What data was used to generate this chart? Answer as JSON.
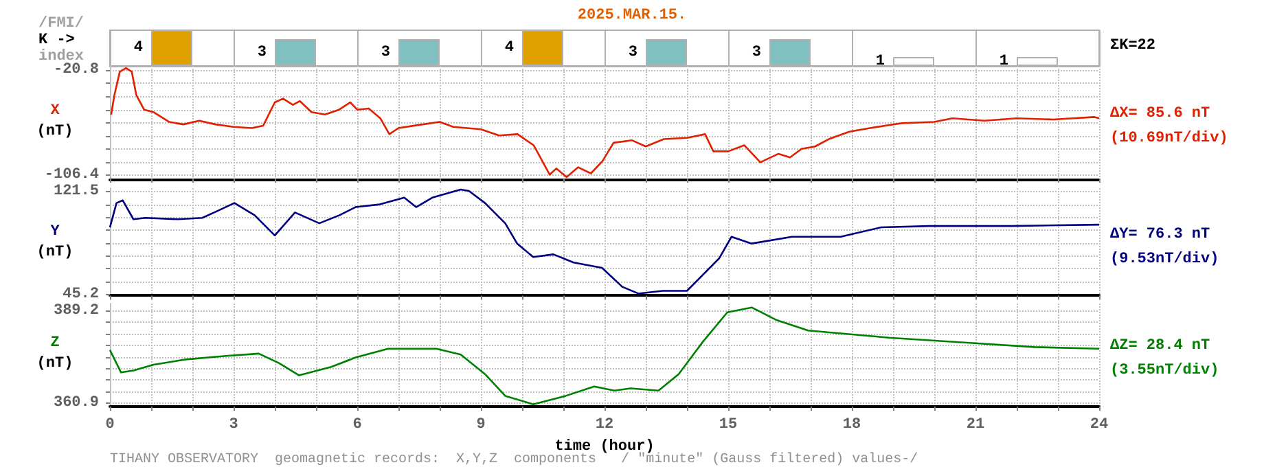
{
  "chart_data": [
    {
      "type": "bar",
      "title": "2025.MAR.15.",
      "categories": [
        null,
        null,
        null,
        null,
        null,
        null,
        null,
        null
      ],
      "values": [
        4,
        3,
        3,
        4,
        3,
        3,
        1,
        1
      ],
      "data_labels": true,
      "colors": [
        "#e0a000",
        "#80c0c0",
        "#80c0c0",
        "#e0a000",
        "#80c0c0",
        "#80c0c0",
        "#ffffff",
        "#ffffff"
      ],
      "annotations": [
        "/FMI/",
        "K ->",
        "index",
        "ΣK=22"
      ]
    },
    {
      "type": "line",
      "ylabel": "X (nT)",
      "xlim": [
        0,
        24
      ],
      "ylim": [
        -109.5,
        -17.3
      ],
      "xticks": [
        0,
        {
          "value": 1,
          "label": null
        },
        {
          "value": 2,
          "label": null
        },
        3,
        {
          "value": 4,
          "label": null
        },
        {
          "value": 5,
          "label": null
        },
        6,
        {
          "value": 7,
          "label": null
        },
        {
          "value": 8,
          "label": null
        },
        9,
        {
          "value": 10,
          "label": null
        },
        {
          "value": 11,
          "label": null
        },
        12,
        {
          "value": 13,
          "label": null
        },
        {
          "value": 14,
          "label": null
        },
        15,
        {
          "value": 16,
          "label": null
        },
        {
          "value": 17,
          "label": null
        },
        18,
        {
          "value": 19,
          "label": null
        },
        {
          "value": 20,
          "label": null
        },
        21,
        {
          "value": 22,
          "label": null
        },
        {
          "value": 23,
          "label": null
        },
        24
      ],
      "yticks": [
        -106.4,
        {
          "value": -95.7,
          "label": null
        },
        {
          "value": -85.0,
          "label": null
        },
        {
          "value": -74.3,
          "label": null
        },
        {
          "value": -63.6,
          "label": null
        },
        {
          "value": -52.9,
          "label": null
        },
        {
          "value": -42.2,
          "label": null
        },
        {
          "value": -31.5,
          "label": null
        },
        -20.8
      ],
      "grid": true,
      "tick_labels": "y",
      "x": [
        0.03,
        0.11,
        0.24,
        0.39,
        0.53,
        0.64,
        0.83,
        1.06,
        1.44,
        1.78,
        2.17,
        2.56,
        3.0,
        3.44,
        3.72,
        4.0,
        4.2,
        4.44,
        4.61,
        4.89,
        5.22,
        5.56,
        5.83,
        6.0,
        6.28,
        6.56,
        6.78,
        7.0,
        7.39,
        8.0,
        8.33,
        9.0,
        9.44,
        9.89,
        10.28,
        10.67,
        10.83,
        11.08,
        11.36,
        11.67,
        11.95,
        12.22,
        12.67,
        13.0,
        13.44,
        14.0,
        14.44,
        14.64,
        15.0,
        15.39,
        15.78,
        16.22,
        16.5,
        16.78,
        17.11,
        17.44,
        17.94,
        18.44,
        19.22,
        20.0,
        20.44,
        21.22,
        22.0,
        22.89,
        23.89,
        24.0
      ],
      "series": [
        {
          "color": "#e02000",
          "values": [
            -57,
            -41,
            -22,
            -19,
            -22,
            -41,
            -53,
            -55,
            -63,
            -65,
            -62,
            -65,
            -67,
            -68,
            -66,
            -47,
            -44,
            -49,
            -46,
            -55,
            -57,
            -53,
            -47,
            -53,
            -52,
            -60,
            -73,
            -68,
            -66,
            -63,
            -67,
            -69,
            -74,
            -73,
            -82,
            -106,
            -101,
            -108,
            -100,
            -105,
            -95,
            -80,
            -78,
            -83,
            -77,
            -76,
            -73,
            -87,
            -87,
            -82,
            -96,
            -89,
            -92,
            -85,
            -83,
            -77,
            -71,
            -68,
            -64,
            -63,
            -60,
            -62,
            -60,
            -61,
            -59,
            -60
          ]
        }
      ],
      "annotations": [
        "ΔX= 85.6 nT",
        "(10.69nT/div)"
      ]
    },
    {
      "type": "line",
      "ylabel": "Y (nT)",
      "xlim": [
        0,
        24
      ],
      "ylim": [
        44.5,
        124
      ],
      "xticks": [
        0,
        {
          "value": 1,
          "label": null
        },
        {
          "value": 2,
          "label": null
        },
        3,
        {
          "value": 4,
          "label": null
        },
        {
          "value": 5,
          "label": null
        },
        6,
        {
          "value": 7,
          "label": null
        },
        {
          "value": 8,
          "label": null
        },
        9,
        {
          "value": 10,
          "label": null
        },
        {
          "value": 11,
          "label": null
        },
        12,
        {
          "value": 13,
          "label": null
        },
        {
          "value": 14,
          "label": null
        },
        15,
        {
          "value": 16,
          "label": null
        },
        {
          "value": 17,
          "label": null
        },
        18,
        {
          "value": 19,
          "label": null
        },
        {
          "value": 20,
          "label": null
        },
        21,
        {
          "value": 22,
          "label": null
        },
        {
          "value": 23,
          "label": null
        },
        24
      ],
      "yticks": [
        45.2,
        {
          "value": 54.7,
          "label": null
        },
        {
          "value": 64.3,
          "label": null
        },
        {
          "value": 73.8,
          "label": null
        },
        {
          "value": 83.4,
          "label": null
        },
        {
          "value": 92.9,
          "label": null
        },
        {
          "value": 102.4,
          "label": null
        },
        {
          "value": 112.0,
          "label": null
        },
        121.5
      ],
      "grid": true,
      "tick_labels": "y",
      "x": [
        0,
        0.16,
        0.31,
        0.57,
        0.86,
        1.65,
        2.24,
        2.53,
        3.02,
        3.51,
        4.0,
        4.49,
        5.08,
        5.57,
        5.96,
        6.55,
        7.14,
        7.43,
        7.82,
        8.51,
        8.71,
        9.1,
        9.59,
        9.88,
        10.27,
        10.76,
        11.25,
        11.94,
        12.43,
        12.82,
        13.41,
        14.0,
        14.39,
        14.78,
        15.08,
        15.57,
        16.55,
        17.73,
        18.71,
        19.88,
        21.84,
        24
      ],
      "series": [
        {
          "color": "#000080",
          "values": [
            95,
            113,
            115,
            101,
            102,
            101,
            102,
            106,
            113,
            104,
            89,
            106,
            98,
            104,
            110,
            112,
            117,
            110,
            117,
            123,
            122,
            113,
            98,
            83,
            73,
            75,
            69,
            65,
            51,
            46,
            48,
            48,
            60,
            72,
            88,
            83,
            88,
            88,
            95,
            96,
            96,
            97
          ]
        }
      ],
      "annotations": [
        "ΔY= 76.3 nT",
        "(9.53nT/div)"
      ]
    },
    {
      "type": "line",
      "ylabel": "Z (nT)",
      "xlabel": "time (hour)",
      "xlim": [
        0,
        24
      ],
      "ylim": [
        359.8,
        391.5
      ],
      "xticks": [
        0,
        {
          "value": 1,
          "label": null
        },
        {
          "value": 2,
          "label": null
        },
        3,
        {
          "value": 4,
          "label": null
        },
        {
          "value": 5,
          "label": null
        },
        6,
        {
          "value": 7,
          "label": null
        },
        {
          "value": 8,
          "label": null
        },
        9,
        {
          "value": 10,
          "label": null
        },
        {
          "value": 11,
          "label": null
        },
        12,
        {
          "value": 13,
          "label": null
        },
        {
          "value": 14,
          "label": null
        },
        15,
        {
          "value": 16,
          "label": null
        },
        {
          "value": 17,
          "label": null
        },
        18,
        {
          "value": 19,
          "label": null
        },
        {
          "value": 20,
          "label": null
        },
        21,
        {
          "value": 22,
          "label": null
        },
        {
          "value": 23,
          "label": null
        },
        24
      ],
      "yticks": [
        360.9,
        {
          "value": 364.4,
          "label": null
        },
        {
          "value": 368.0,
          "label": null
        },
        {
          "value": 371.5,
          "label": null
        },
        {
          "value": 375.1,
          "label": null
        },
        {
          "value": 378.6,
          "label": null
        },
        {
          "value": 382.1,
          "label": null
        },
        {
          "value": 385.7,
          "label": null
        },
        389.2
      ],
      "grid": true,
      "x": [
        0,
        0.27,
        0.57,
        1.06,
        1.84,
        2.82,
        3.61,
        4.1,
        4.59,
        5.37,
        5.96,
        6.75,
        7.92,
        8.51,
        9.1,
        9.59,
        10.27,
        11.06,
        11.75,
        12.24,
        12.63,
        13.31,
        13.8,
        14.39,
        14.98,
        15.57,
        16.16,
        16.94,
        17.92,
        18.9,
        20.86,
        22.43,
        24
      ],
      "series": [
        {
          "color": "#008000",
          "values": [
            377.2,
            370.3,
            370.9,
            372.7,
            374.3,
            375.4,
            376.1,
            373.2,
            369.4,
            372.0,
            374.9,
            377.6,
            377.6,
            375.8,
            369.8,
            363.1,
            360.5,
            363.1,
            366.0,
            364.7,
            365.4,
            364.7,
            369.8,
            379.8,
            388.8,
            390.3,
            386.5,
            383.2,
            382.1,
            381.0,
            379.4,
            378.1,
            377.6
          ]
        }
      ],
      "annotations": [
        "ΔZ= 28.4 nT",
        "(3.55nT/div)",
        "TIHANY OBSERVATORY  geomagnetic records:  X,Y,Z  components   / \"minute\" (Gauss filtered) values-/"
      ]
    }
  ]
}
